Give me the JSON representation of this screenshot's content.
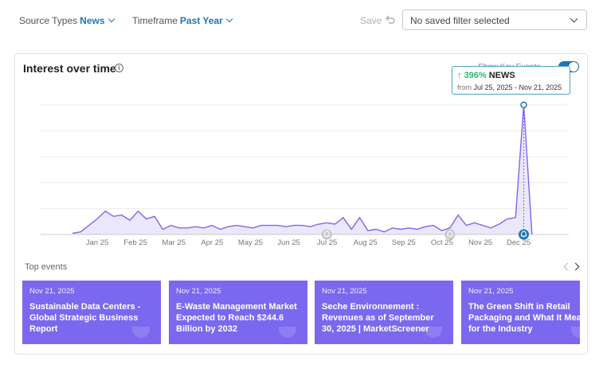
{
  "filters": {
    "source_label": "Source Types",
    "source_value": "News",
    "timeframe_label": "Timeframe",
    "timeframe_value": "Past Year",
    "save_label": "Save",
    "saved_filter_placeholder": "No saved filter selected"
  },
  "card": {
    "title": "Interest over time",
    "show_key_events_label": "Show Key Events",
    "show_key_events_on": true
  },
  "tooltip": {
    "arrow": "↑",
    "change": "396%",
    "label": "NEWS",
    "from_label": "from",
    "range": "Jul 25, 2025 - Nov 21, 2025"
  },
  "chart_data": {
    "type": "area",
    "x_ticks": [
      "Jan 25",
      "Feb 25",
      "Mar 25",
      "Apr 25",
      "May 25",
      "Jun 25",
      "Jul 25",
      "Aug 25",
      "Sep 25",
      "Oct 25",
      "Nov 25",
      "Dec 25"
    ],
    "y_range": [
      0,
      100
    ],
    "grid": true,
    "series": [
      {
        "color": "#7b68ee",
        "values": [
          1,
          2,
          7,
          12,
          18,
          14,
          15,
          11,
          18,
          12,
          14,
          4,
          7,
          5,
          5,
          6,
          5,
          7,
          4,
          6,
          7,
          6,
          5,
          7,
          7,
          7,
          6,
          7,
          7,
          6,
          8,
          9,
          8,
          13,
          4,
          13,
          3,
          4,
          2,
          5,
          4,
          5,
          4,
          6,
          7,
          3,
          5,
          15,
          7,
          9,
          7,
          5,
          8,
          12,
          13,
          100,
          0
        ]
      }
    ],
    "key_events": [
      "Jul 25",
      "Oct 25",
      "Nov 21, 2025"
    ]
  },
  "events": {
    "label": "Top events",
    "items": [
      {
        "date": "Nov 21, 2025",
        "title": "Sustainable Data Centers - Global Strategic Business Report"
      },
      {
        "date": "Nov 21, 2025",
        "title": "E-Waste Management Market Expected to Reach $244.6 Billion by 2032"
      },
      {
        "date": "Nov 21, 2025",
        "title": "Seche Environnement : Revenues as of September 30, 2025 | MarketScreener"
      },
      {
        "date": "Nov 21, 2025",
        "title": "The Green Shift in Retail Packaging and What It Means for the Industry"
      }
    ]
  }
}
